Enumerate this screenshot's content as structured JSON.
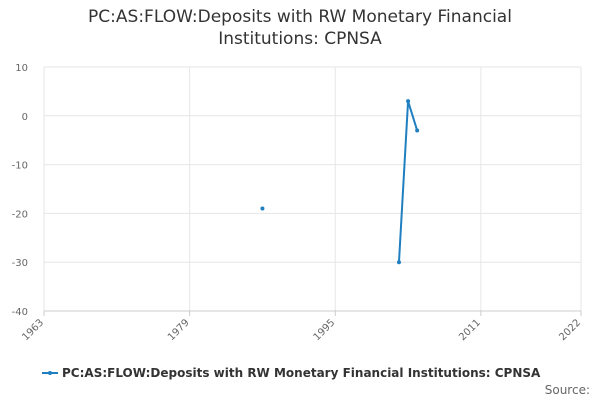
{
  "chart_data": {
    "type": "line",
    "title": "PC:AS:FLOW:Deposits with RW Monetary Financial Institutions: CPNSA",
    "x": [
      1987,
      1988,
      2002,
      2003,
      2004
    ],
    "series": [
      {
        "name": "PC:AS:FLOW:Deposits with RW Monetary Financial Institutions: CPNSA",
        "color": "#1f7fc1",
        "values": [
          -19,
          null,
          -30,
          3,
          -3
        ]
      }
    ],
    "xlim": [
      1963,
      2022
    ],
    "xticks": [
      1963,
      1979,
      1995,
      2011,
      2022
    ],
    "ylim": [
      -40,
      10
    ],
    "yticks": [
      -40,
      -30,
      -20,
      -10,
      0,
      10
    ],
    "grid": true,
    "legend": "bottom",
    "source": "Source:"
  }
}
